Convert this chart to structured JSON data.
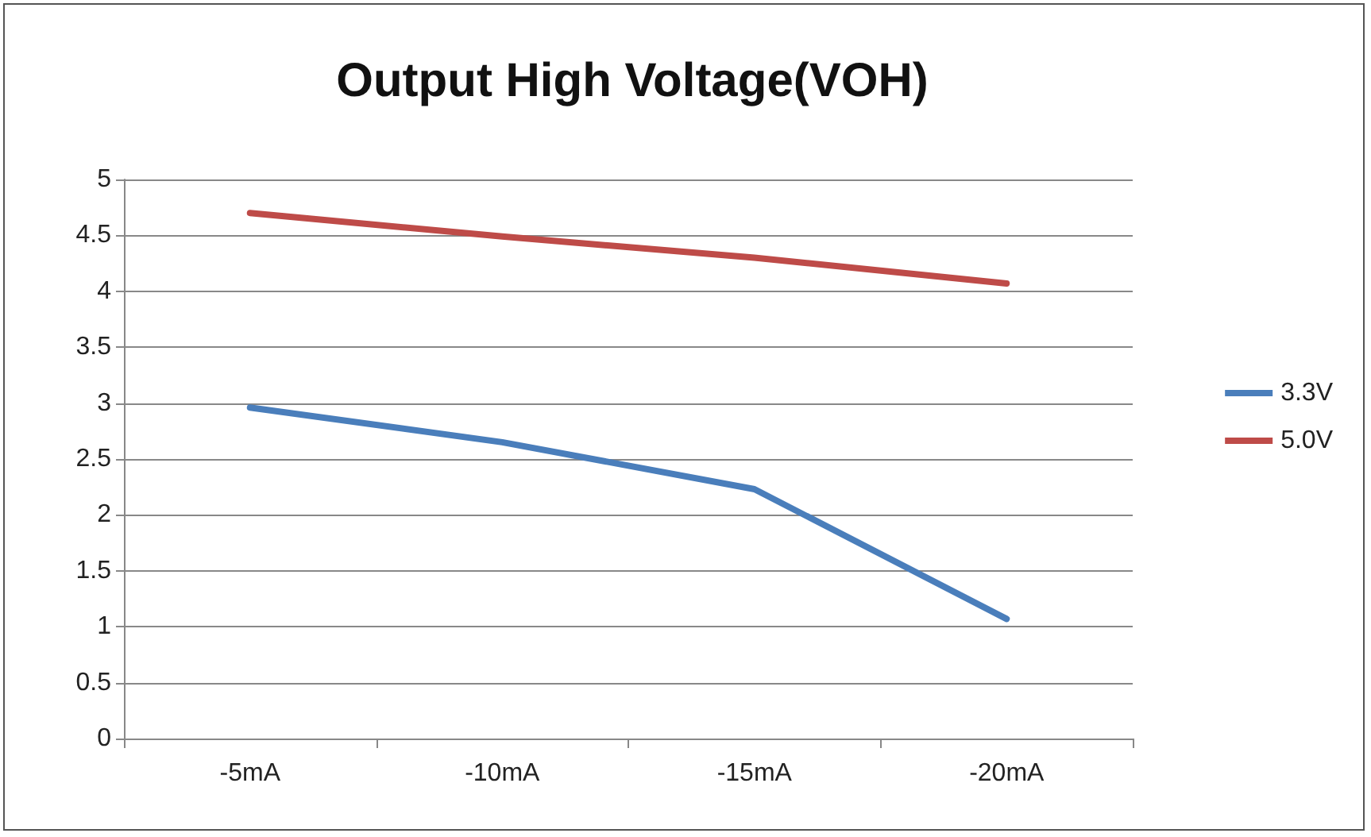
{
  "chart_data": {
    "type": "line",
    "title": "Output High Voltage(VOH)",
    "categories": [
      "-5mA",
      "-10mA",
      "-15mA",
      "-20mA"
    ],
    "series": [
      {
        "name": "3.3V",
        "color": "#4a7ebb",
        "values": [
          2.96,
          2.65,
          2.23,
          1.07
        ]
      },
      {
        "name": "5.0V",
        "color": "#be4b48",
        "values": [
          4.7,
          4.49,
          4.3,
          4.07
        ]
      }
    ],
    "ylim": [
      0,
      5
    ],
    "yticks": [
      0,
      0.5,
      1,
      1.5,
      2,
      2.5,
      3,
      3.5,
      4,
      4.5,
      5
    ],
    "grid": "y",
    "legend": "right",
    "marker": "none",
    "line_style": "solid"
  }
}
